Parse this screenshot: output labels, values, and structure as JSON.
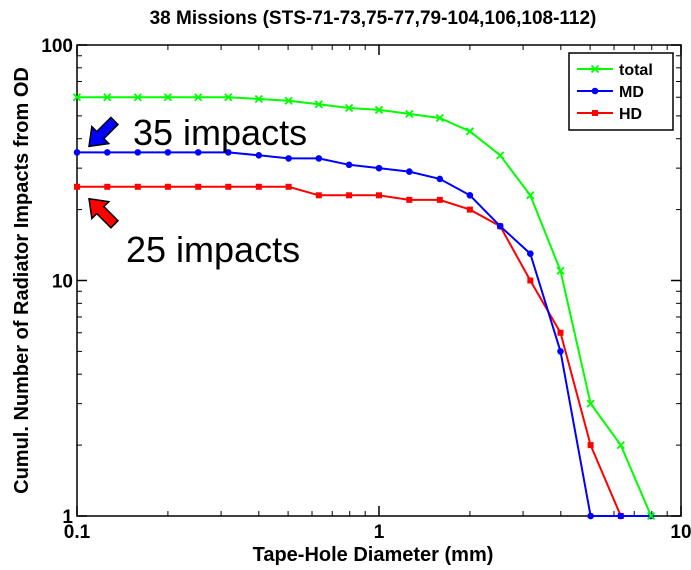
{
  "chart_data": {
    "type": "line",
    "title": "38 Missions (STS-71-73,75-77,79-104,106,108-112)",
    "xlabel": "Tape-Hole Diameter (mm)",
    "ylabel": "Cumul. Number of Radiator Impacts from OD",
    "xscale": "log",
    "yscale": "log",
    "xlim": [
      0.1,
      10
    ],
    "ylim": [
      1,
      100
    ],
    "xticks": [
      {
        "value": 0.1,
        "label": "0.1"
      },
      {
        "value": 1,
        "label": "1"
      },
      {
        "value": 10,
        "label": "10"
      }
    ],
    "yticks": [
      {
        "value": 1,
        "label": "1"
      },
      {
        "value": 10,
        "label": "10"
      },
      {
        "value": 100,
        "label": "100"
      }
    ],
    "legend_position": "top-right",
    "series": [
      {
        "name": "total",
        "color": "#00ff00",
        "marker": "x",
        "x": [
          0.1,
          0.126,
          0.159,
          0.2,
          0.252,
          0.317,
          0.4,
          0.502,
          0.632,
          0.796,
          1.0,
          1.26,
          1.59,
          2.0,
          2.52,
          3.17,
          3.99,
          5.02,
          6.32,
          7.96
        ],
        "y": [
          60,
          60,
          60,
          60,
          60,
          60,
          59,
          58,
          56,
          54,
          53,
          51,
          49,
          43,
          34,
          23,
          11,
          3,
          2,
          1
        ]
      },
      {
        "name": "MD",
        "color": "#0000ff",
        "marker": "circle",
        "x": [
          0.1,
          0.126,
          0.159,
          0.2,
          0.252,
          0.317,
          0.4,
          0.502,
          0.632,
          0.796,
          1.0,
          1.26,
          1.59,
          2.0,
          2.52,
          3.17,
          3.99,
          5.02,
          6.32,
          7.96
        ],
        "y": [
          35,
          35,
          35,
          35,
          35,
          35,
          34,
          33,
          33,
          31,
          30,
          29,
          27,
          23,
          17,
          13,
          5,
          1,
          1,
          1
        ]
      },
      {
        "name": "HD",
        "color": "#ff0000",
        "marker": "square",
        "x": [
          0.1,
          0.126,
          0.159,
          0.2,
          0.252,
          0.317,
          0.4,
          0.502,
          0.632,
          0.796,
          1.0,
          1.26,
          1.59,
          2.0,
          2.52,
          3.17,
          3.99,
          5.02,
          6.32
        ],
        "y": [
          25,
          25,
          25,
          25,
          25,
          25,
          25,
          25,
          23,
          23,
          23,
          22,
          22,
          20,
          17,
          10,
          6,
          2,
          1
        ]
      }
    ],
    "annotations": [
      {
        "text": "35 impacts",
        "x": 0.1,
        "y": 35,
        "arrow_color": "#0000ff"
      },
      {
        "text": "25 impacts",
        "x": 0.1,
        "y": 25,
        "arrow_color": "#ff0000"
      }
    ]
  }
}
